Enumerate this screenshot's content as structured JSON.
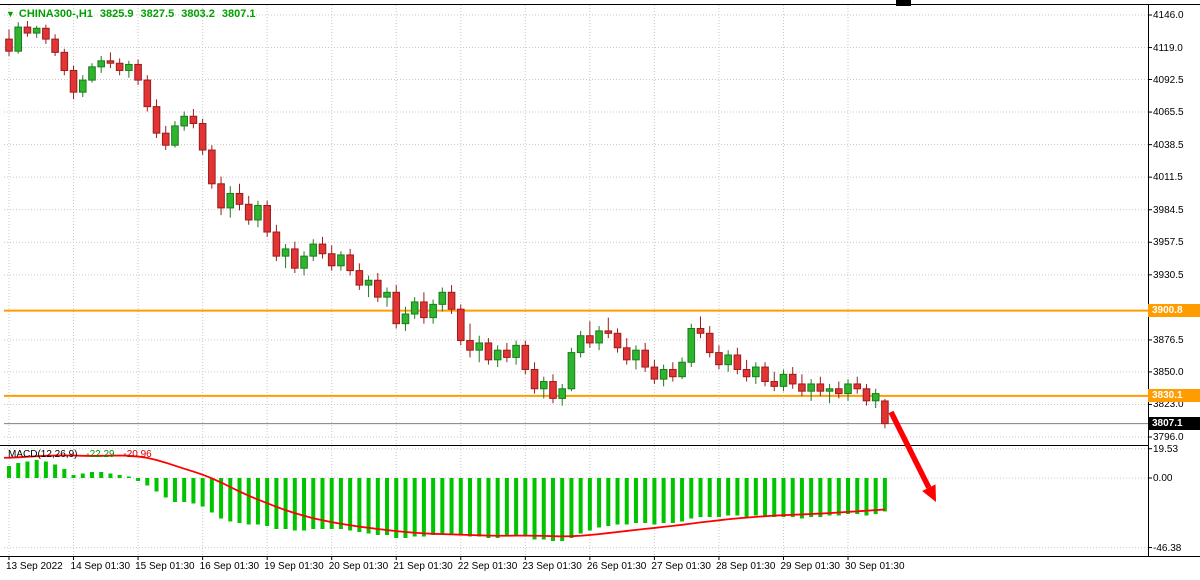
{
  "header": {
    "dropdown_glyph": "▼",
    "symbol_timeframe": "CHINA300-,H1",
    "open": "3825.9",
    "high": "3827.5",
    "low": "3803.2",
    "close": "3807.1"
  },
  "macd_header": {
    "name": "MACD(12,26,9)",
    "main_value": "-22.29",
    "signal_value": "-20.96"
  },
  "colors": {
    "up_fill": "#2db52d",
    "up_border": "#1d7a1d",
    "down_fill": "#e23434",
    "down_border": "#9b1c1c",
    "hline": "#ff9c00",
    "macd_bar": "#00c400",
    "signal_line": "#ff0000",
    "arrow": "#ff0000",
    "grid": "#c9c9c9",
    "border": "#000000",
    "current_price_line": "#808080",
    "badge_current_bg": "#000000",
    "title_text": "#00a000"
  },
  "chart_data": {
    "type": "candlestick",
    "symbol": "CHINA300-",
    "timeframe": "H1",
    "price_axis_ticks": [
      "4146.0",
      "4119.0",
      "4092.5",
      "4065.5",
      "4038.5",
      "4011.5",
      "3984.5",
      "3957.5",
      "3930.5",
      "3876.5",
      "3850.0",
      "3823.0",
      "3796.0"
    ],
    "price_range_approx": [
      3789,
      4155
    ],
    "date_ticks": [
      {
        "i": 0,
        "label": "13 Sep 2022"
      },
      {
        "i": 7,
        "label": "14 Sep 01:30"
      },
      {
        "i": 14,
        "label": "15 Sep 01:30"
      },
      {
        "i": 21,
        "label": "16 Sep 01:30"
      },
      {
        "i": 28,
        "label": "19 Sep 01:30"
      },
      {
        "i": 35,
        "label": "20 Sep 01:30"
      },
      {
        "i": 42,
        "label": "21 Sep 01:30"
      },
      {
        "i": 49,
        "label": "22 Sep 01:30"
      },
      {
        "i": 56,
        "label": "23 Sep 01:30"
      },
      {
        "i": 63,
        "label": "26 Sep 01:30"
      },
      {
        "i": 70,
        "label": "27 Sep 01:30"
      },
      {
        "i": 77,
        "label": "28 Sep 01:30"
      },
      {
        "i": 84,
        "label": "29 Sep 01:30"
      },
      {
        "i": 91,
        "label": "30 Sep 01:30"
      }
    ],
    "candles_ohlc": [
      [
        4126,
        4134,
        4112,
        4116
      ],
      [
        4116,
        4140,
        4114,
        4136
      ],
      [
        4136,
        4141,
        4128,
        4131
      ],
      [
        4131,
        4137,
        4127,
        4135
      ],
      [
        4135,
        4138,
        4122,
        4126
      ],
      [
        4126,
        4130,
        4112,
        4115
      ],
      [
        4115,
        4118,
        4096,
        4100
      ],
      [
        4100,
        4104,
        4076,
        4082
      ],
      [
        4082,
        4096,
        4078,
        4092
      ],
      [
        4092,
        4106,
        4090,
        4103
      ],
      [
        4103,
        4112,
        4098,
        4108
      ],
      [
        4108,
        4115,
        4102,
        4106
      ],
      [
        4106,
        4110,
        4096,
        4100
      ],
      [
        4100,
        4108,
        4094,
        4105
      ],
      [
        4105,
        4109,
        4088,
        4092
      ],
      [
        4092,
        4096,
        4066,
        4070
      ],
      [
        4070,
        4076,
        4044,
        4048
      ],
      [
        4048,
        4054,
        4034,
        4038
      ],
      [
        4038,
        4058,
        4036,
        4054
      ],
      [
        4054,
        4066,
        4050,
        4062
      ],
      [
        4062,
        4068,
        4052,
        4056
      ],
      [
        4056,
        4060,
        4030,
        4034
      ],
      [
        4034,
        4038,
        4002,
        4006
      ],
      [
        4006,
        4012,
        3980,
        3986
      ],
      [
        3986,
        4004,
        3978,
        3998
      ],
      [
        3998,
        4006,
        3984,
        3989
      ],
      [
        3989,
        3996,
        3972,
        3976
      ],
      [
        3976,
        3992,
        3970,
        3988
      ],
      [
        3988,
        3992,
        3962,
        3966
      ],
      [
        3966,
        3972,
        3942,
        3946
      ],
      [
        3946,
        3956,
        3936,
        3952
      ],
      [
        3952,
        3958,
        3932,
        3936
      ],
      [
        3936,
        3950,
        3930,
        3946
      ],
      [
        3946,
        3960,
        3942,
        3956
      ],
      [
        3956,
        3962,
        3944,
        3948
      ],
      [
        3948,
        3955,
        3934,
        3938
      ],
      [
        3938,
        3950,
        3934,
        3947
      ],
      [
        3947,
        3952,
        3930,
        3934
      ],
      [
        3934,
        3940,
        3918,
        3922
      ],
      [
        3922,
        3930,
        3912,
        3926
      ],
      [
        3926,
        3932,
        3908,
        3912
      ],
      [
        3912,
        3920,
        3904,
        3916
      ],
      [
        3916,
        3922,
        3886,
        3890
      ],
      [
        3890,
        3904,
        3884,
        3898
      ],
      [
        3898,
        3912,
        3894,
        3908
      ],
      [
        3908,
        3916,
        3890,
        3895
      ],
      [
        3895,
        3910,
        3890,
        3906
      ],
      [
        3906,
        3920,
        3900,
        3916
      ],
      [
        3916,
        3922,
        3898,
        3902
      ],
      [
        3902,
        3906,
        3872,
        3876
      ],
      [
        3876,
        3890,
        3862,
        3868
      ],
      [
        3868,
        3880,
        3858,
        3874
      ],
      [
        3874,
        3878,
        3856,
        3860
      ],
      [
        3860,
        3872,
        3854,
        3868
      ],
      [
        3868,
        3874,
        3858,
        3862
      ],
      [
        3862,
        3876,
        3856,
        3872
      ],
      [
        3872,
        3876,
        3848,
        3852
      ],
      [
        3852,
        3858,
        3832,
        3836
      ],
      [
        3836,
        3846,
        3828,
        3842
      ],
      [
        3842,
        3848,
        3824,
        3828
      ],
      [
        3828,
        3840,
        3822,
        3836
      ],
      [
        3836,
        3870,
        3834,
        3866
      ],
      [
        3866,
        3884,
        3862,
        3880
      ],
      [
        3880,
        3892,
        3870,
        3874
      ],
      [
        3874,
        3888,
        3868,
        3884
      ],
      [
        3884,
        3895,
        3878,
        3882
      ],
      [
        3882,
        3886,
        3866,
        3870
      ],
      [
        3870,
        3878,
        3856,
        3860
      ],
      [
        3860,
        3872,
        3852,
        3868
      ],
      [
        3868,
        3874,
        3850,
        3854
      ],
      [
        3854,
        3860,
        3840,
        3844
      ],
      [
        3844,
        3856,
        3838,
        3852
      ],
      [
        3852,
        3858,
        3842,
        3846
      ],
      [
        3846,
        3862,
        3844,
        3858
      ],
      [
        3858,
        3890,
        3854,
        3886
      ],
      [
        3886,
        3896,
        3878,
        3882
      ],
      [
        3882,
        3888,
        3862,
        3866
      ],
      [
        3866,
        3872,
        3852,
        3856
      ],
      [
        3856,
        3868,
        3850,
        3864
      ],
      [
        3864,
        3870,
        3848,
        3852
      ],
      [
        3852,
        3860,
        3842,
        3846
      ],
      [
        3846,
        3858,
        3840,
        3854
      ],
      [
        3854,
        3858,
        3838,
        3842
      ],
      [
        3842,
        3850,
        3834,
        3838
      ],
      [
        3838,
        3852,
        3834,
        3848
      ],
      [
        3848,
        3854,
        3836,
        3840
      ],
      [
        3840,
        3848,
        3830,
        3834
      ],
      [
        3834,
        3844,
        3826,
        3840
      ],
      [
        3840,
        3846,
        3830,
        3834
      ],
      [
        3834,
        3840,
        3824,
        3836
      ],
      [
        3836,
        3842,
        3828,
        3832
      ],
      [
        3832,
        3844,
        3826,
        3840
      ],
      [
        3840,
        3846,
        3832,
        3836
      ],
      [
        3836,
        3840,
        3822,
        3826
      ],
      [
        3826,
        3836,
        3820,
        3832
      ],
      [
        3825.9,
        3827.5,
        3803.2,
        3807.1
      ]
    ],
    "horizontal_lines": [
      {
        "price": 3900.8,
        "label": "3900.8"
      },
      {
        "price": 3830.1,
        "label": "3830.1"
      }
    ],
    "current_price": {
      "price": 3807.1,
      "label": "3807.1"
    },
    "macd": {
      "scale_ticks": [
        "19.53",
        "0.00",
        "-46.38"
      ],
      "histogram": [
        8,
        10,
        11,
        12,
        11,
        9,
        6,
        2,
        3,
        4,
        4,
        3,
        2,
        1,
        -2,
        -5,
        -9,
        -13,
        -16,
        -16,
        -17,
        -19,
        -23,
        -27,
        -29,
        -30,
        -31,
        -31,
        -32,
        -34,
        -34,
        -35,
        -35,
        -34,
        -34,
        -34,
        -34,
        -35,
        -36,
        -37,
        -38,
        -38,
        -40,
        -40,
        -39,
        -39,
        -38,
        -37,
        -37,
        -38,
        -39,
        -39,
        -40,
        -40,
        -39,
        -38,
        -39,
        -41,
        -41,
        -42,
        -42,
        -40,
        -37,
        -35,
        -33,
        -32,
        -31,
        -31,
        -30,
        -30,
        -31,
        -30,
        -30,
        -29,
        -27,
        -26,
        -26,
        -26,
        -25,
        -25,
        -26,
        -25,
        -26,
        -26,
        -26,
        -26,
        -27,
        -26,
        -26,
        -25,
        -25,
        -24,
        -24,
        -25,
        -24,
        -22.29
      ],
      "signal": [
        13.5,
        13.8,
        14.2,
        14.5,
        14.8,
        15.0,
        15.1,
        15.0,
        14.8,
        14.7,
        14.8,
        14.9,
        15.0,
        14.8,
        14.3,
        13.4,
        12.0,
        10.2,
        8.2,
        6.2,
        4.3,
        2.2,
        -0.2,
        -3.0,
        -6.0,
        -9.0,
        -11.8,
        -14.4,
        -16.8,
        -19.2,
        -21.4,
        -23.4,
        -25.2,
        -26.8,
        -28.2,
        -29.4,
        -30.5,
        -31.5,
        -32.4,
        -33.2,
        -34.0,
        -34.7,
        -35.4,
        -36.0,
        -36.5,
        -36.9,
        -37.2,
        -37.4,
        -37.6,
        -37.8,
        -38.0,
        -38.2,
        -38.4,
        -38.5,
        -38.5,
        -38.4,
        -38.4,
        -38.5,
        -38.6,
        -38.8,
        -38.9,
        -38.8,
        -38.5,
        -38.0,
        -37.4,
        -36.7,
        -36.0,
        -35.3,
        -34.6,
        -33.9,
        -33.3,
        -32.6,
        -31.9,
        -31.2,
        -30.4,
        -29.6,
        -28.9,
        -28.2,
        -27.5,
        -26.9,
        -26.4,
        -25.9,
        -25.5,
        -25.1,
        -24.8,
        -24.5,
        -24.3,
        -24.0,
        -23.7,
        -23.4,
        -23.0,
        -22.6,
        -22.2,
        -21.8,
        -21.4,
        -20.96
      ]
    },
    "trend_arrow": {
      "from": [
        891,
        412
      ],
      "to": [
        936,
        502
      ]
    }
  }
}
